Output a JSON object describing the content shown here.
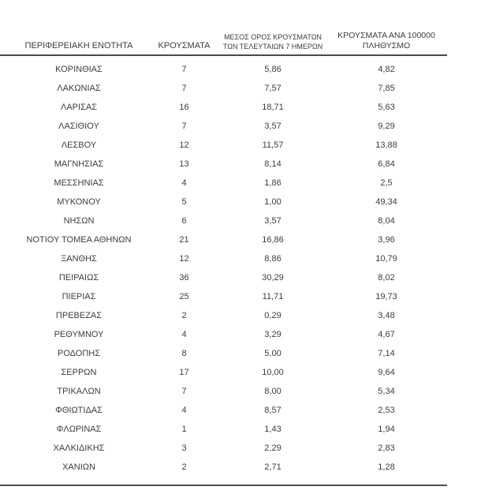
{
  "colors": {
    "background": "#ffffff",
    "text": "#3d3d3d",
    "rule": "#4a4a4a"
  },
  "table": {
    "header": {
      "col1": "ΠΕΡΙΦΕΡΕΙΑΚΗ ΕΝΟΤΗΤΑ",
      "col2": "ΚΡΟΥΣΜΑΤΑ",
      "col3_line1": "ΜΕΣΟΣ ΟΡΟΣ ΚΡΟΥΣΜΑΤΩΝ",
      "col3_line2": "ΤΩΝ ΤΕΛΕΥΤΑΙΩΝ 7 ΗΜΕΡΩΝ",
      "col4_line1": "ΚΡΟΥΣΜΑΤΑ ΑΝΑ 100000",
      "col4_line2": "ΠΛΗΘΥΣΜΟ"
    },
    "rows": [
      {
        "region": "ΚΟΡΙΝΘΙΑΣ",
        "cases": "7",
        "avg7": "5,86",
        "per100k": "4,82"
      },
      {
        "region": "ΛΑΚΩΝΙΑΣ",
        "cases": "7",
        "avg7": "7,57",
        "per100k": "7,85"
      },
      {
        "region": "ΛΑΡΙΣΑΣ",
        "cases": "16",
        "avg7": "18,71",
        "per100k": "5,63"
      },
      {
        "region": "ΛΑΣΙΘΙΟΥ",
        "cases": "7",
        "avg7": "3,57",
        "per100k": "9,29"
      },
      {
        "region": "ΛΕΣΒΟΥ",
        "cases": "12",
        "avg7": "11,57",
        "per100k": "13,88"
      },
      {
        "region": "ΜΑΓΝΗΣΙΑΣ",
        "cases": "13",
        "avg7": "8,14",
        "per100k": "6,84"
      },
      {
        "region": "ΜΕΣΣΗΝΙΑΣ",
        "cases": "4",
        "avg7": "1,86",
        "per100k": "2,5"
      },
      {
        "region": "ΜΥΚΟΝΟΥ",
        "cases": "5",
        "avg7": "1,00",
        "per100k": "49,34"
      },
      {
        "region": "ΝΗΣΩΝ",
        "cases": "6",
        "avg7": "3,57",
        "per100k": "8,04"
      },
      {
        "region": "ΝΟΤΙΟΥ ΤΟΜΕΑ ΑΘΗΝΩΝ",
        "cases": "21",
        "avg7": "16,86",
        "per100k": "3,96"
      },
      {
        "region": "ΞΑΝΘΗΣ",
        "cases": "12",
        "avg7": "8,86",
        "per100k": "10,79"
      },
      {
        "region": "ΠΕΙΡΑΙΩΣ",
        "cases": "36",
        "avg7": "30,29",
        "per100k": "8,02"
      },
      {
        "region": "ΠΙΕΡΙΑΣ",
        "cases": "25",
        "avg7": "11,71",
        "per100k": "19,73"
      },
      {
        "region": "ΠΡΕΒΕΖΑΣ",
        "cases": "2",
        "avg7": "0,29",
        "per100k": "3,48"
      },
      {
        "region": "ΡΕΘΥΜΝΟΥ",
        "cases": "4",
        "avg7": "3,29",
        "per100k": "4,67"
      },
      {
        "region": "ΡΟΔΟΠΗΣ",
        "cases": "8",
        "avg7": "5,00",
        "per100k": "7,14"
      },
      {
        "region": "ΣΕΡΡΩΝ",
        "cases": "17",
        "avg7": "10,00",
        "per100k": "9,64"
      },
      {
        "region": "ΤΡΙΚΑΛΩΝ",
        "cases": "7",
        "avg7": "8,00",
        "per100k": "5,34"
      },
      {
        "region": "ΦΘΙΩΤΙΔΑΣ",
        "cases": "4",
        "avg7": "8,57",
        "per100k": "2,53"
      },
      {
        "region": "ΦΛΩΡΙΝΑΣ",
        "cases": "1",
        "avg7": "1,43",
        "per100k": "1,94"
      },
      {
        "region": "ΧΑΛΚΙΔΙΚΗΣ",
        "cases": "3",
        "avg7": "2,29",
        "per100k": "2,83"
      },
      {
        "region": "ΧΑΝΙΩΝ",
        "cases": "2",
        "avg7": "2,71",
        "per100k": "1,28"
      }
    ]
  }
}
